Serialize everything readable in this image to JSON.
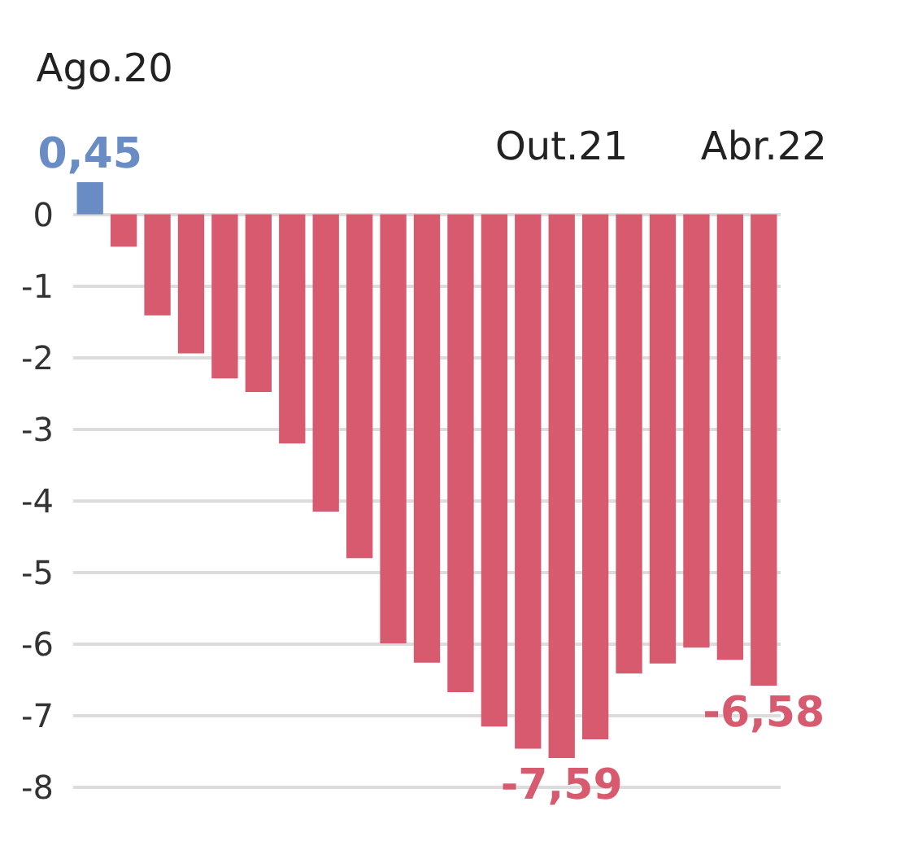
{
  "chart_data": {
    "type": "bar",
    "categories": [
      "Ago.20",
      null,
      null,
      null,
      null,
      null,
      null,
      null,
      null,
      null,
      null,
      null,
      null,
      null,
      "Out.21",
      null,
      null,
      null,
      null,
      null,
      "Abr.22"
    ],
    "values": [
      0.45,
      -0.45,
      -1.41,
      -1.94,
      -2.29,
      -2.48,
      -3.2,
      -4.15,
      -4.8,
      -5.99,
      -6.26,
      -6.67,
      -7.15,
      -7.46,
      -7.59,
      -7.33,
      -6.41,
      -6.27,
      -6.05,
      -6.22,
      -6.58
    ],
    "colors": [
      "#6a8cc4",
      "#d75a6e",
      "#d75a6e",
      "#d75a6e",
      "#d75a6e",
      "#d75a6e",
      "#d75a6e",
      "#d75a6e",
      "#d75a6e",
      "#d75a6e",
      "#d75a6e",
      "#d75a6e",
      "#d75a6e",
      "#d75a6e",
      "#d75a6e",
      "#d75a6e",
      "#d75a6e",
      "#d75a6e",
      "#d75a6e",
      "#d75a6e",
      "#d75a6e"
    ],
    "value_labels": [
      "0,45",
      null,
      null,
      null,
      null,
      null,
      null,
      null,
      null,
      null,
      null,
      null,
      null,
      null,
      "-7,59",
      null,
      null,
      null,
      null,
      null,
      "-6,58"
    ],
    "ylim": [
      -8,
      0.45
    ],
    "yticks": [
      0,
      -1,
      -2,
      -3,
      -4,
      -5,
      -6,
      -7,
      -8
    ],
    "grid": "y"
  }
}
